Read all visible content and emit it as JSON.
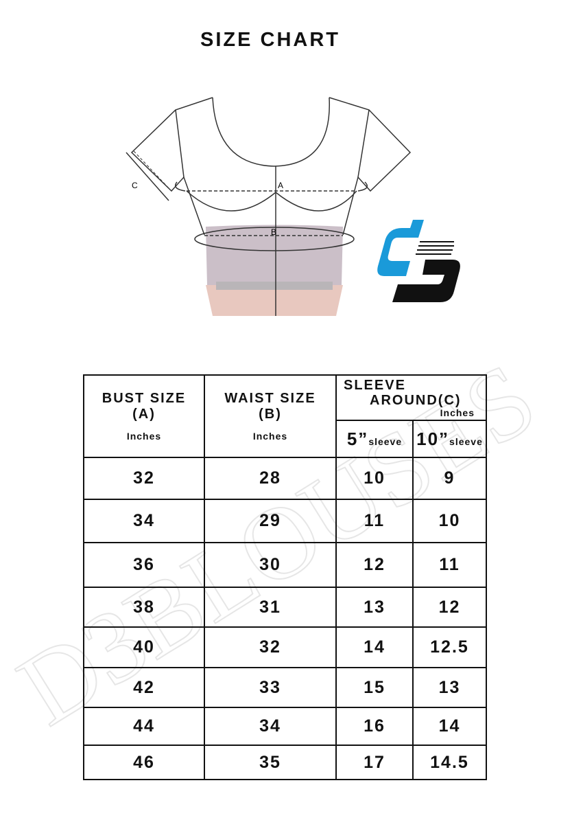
{
  "title": "SIZE CHART",
  "diagram": {
    "labels": {
      "a": "A",
      "b": "B",
      "c": "C"
    }
  },
  "logo": {
    "text": "D3",
    "colors": {
      "primary": "#1a9ad9",
      "secondary": "#111111"
    }
  },
  "watermark": "D3BLOUSES",
  "table": {
    "headers": {
      "bust": {
        "label": "BUST SIZE",
        "code": "(A)",
        "unit": "Inches"
      },
      "waist": {
        "label": "WAIST SIZE",
        "code": "(B)",
        "unit": "Inches"
      },
      "sleeve": {
        "label1": "SLEEVE",
        "label2": "AROUND",
        "code": "(C)",
        "unit": "Inches"
      },
      "sub": [
        {
          "num": "5”",
          "word": "sleeve"
        },
        {
          "num": "10”",
          "word": "sleeve"
        }
      ]
    },
    "rows": [
      [
        "32",
        "28",
        "10",
        "9"
      ],
      [
        "34",
        "29",
        "11",
        "10"
      ],
      [
        "36",
        "30",
        "12",
        "11"
      ],
      [
        "38",
        "31",
        "13",
        "12"
      ],
      [
        "40",
        "32",
        "14",
        "12.5"
      ],
      [
        "42",
        "33",
        "15",
        "13"
      ],
      [
        "44",
        "34",
        "16",
        "14"
      ],
      [
        "46",
        "35",
        "17",
        "14.5"
      ]
    ]
  }
}
